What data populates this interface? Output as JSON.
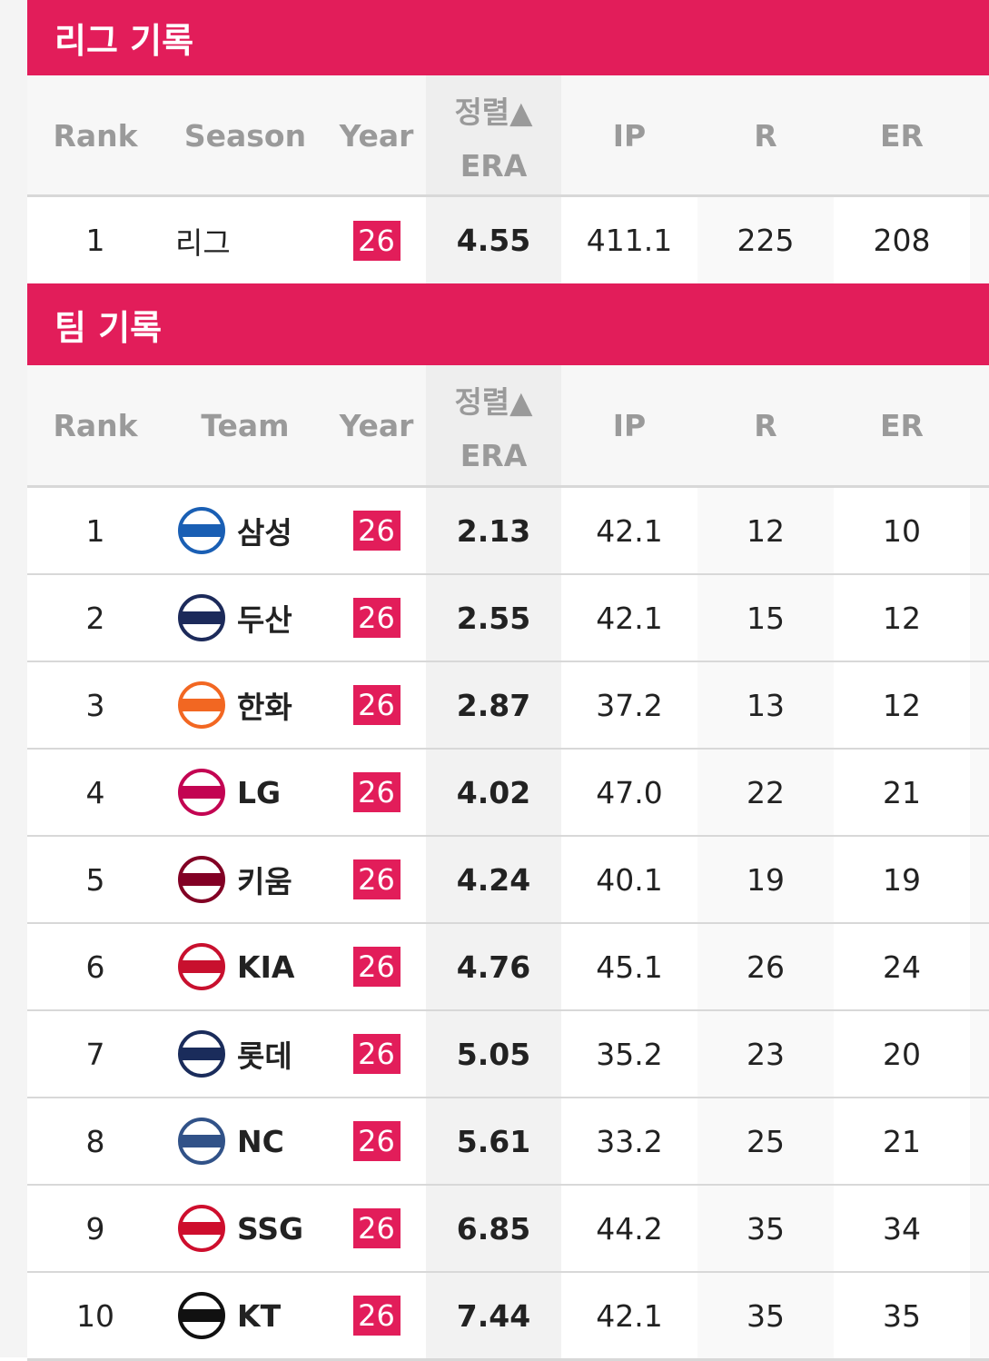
{
  "league": {
    "title": "리그 기록",
    "columns": [
      "Rank",
      "Season",
      "Year",
      "ERA",
      "IP",
      "R",
      "ER"
    ],
    "sort_label": "정렬▲",
    "rows": [
      [
        "1",
        "리그",
        "26",
        "4.55",
        "411.1",
        "225",
        "208"
      ]
    ]
  },
  "team": {
    "title": "팀 기록",
    "columns": [
      "Rank",
      "Team",
      "Year",
      "ERA",
      "IP",
      "R",
      "ER"
    ],
    "sort_label": "정렬▲",
    "rows": [
      [
        "1",
        "삼성",
        "26",
        "2.13",
        "42.1",
        "12",
        "10"
      ],
      [
        "2",
        "두산",
        "26",
        "2.55",
        "42.1",
        "15",
        "12"
      ],
      [
        "3",
        "한화",
        "26",
        "2.87",
        "37.2",
        "13",
        "12"
      ],
      [
        "4",
        "LG",
        "26",
        "4.02",
        "47.0",
        "22",
        "21"
      ],
      [
        "5",
        "키움",
        "26",
        "4.24",
        "40.1",
        "19",
        "19"
      ],
      [
        "6",
        "KIA",
        "26",
        "4.76",
        "45.1",
        "26",
        "24"
      ],
      [
        "7",
        "롯데",
        "26",
        "5.05",
        "35.2",
        "23",
        "20"
      ],
      [
        "8",
        "NC",
        "26",
        "5.61",
        "33.2",
        "25",
        "21"
      ],
      [
        "9",
        "SSG",
        "26",
        "6.85",
        "44.2",
        "35",
        "34"
      ],
      [
        "10",
        "KT",
        "26",
        "7.44",
        "42.1",
        "35",
        "35"
      ]
    ]
  }
}
